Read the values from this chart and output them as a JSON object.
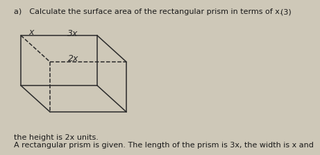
{
  "background_color": "#cec8b8",
  "text_color": "#1a1a1a",
  "box_color": "#2a2a2a",
  "title_line1": "A rectangular prism is given. The length of the prism is 3x, the width is x and",
  "title_line2": "the height is 2x units.",
  "question_line": "a) Calculate the surface area of the rectangular prism in terms of x.",
  "marks_text": "(3)",
  "label_2x": "2x",
  "label_3x": "3x",
  "label_x": "x",
  "font_size_title": 8.0,
  "font_size_label": 9.0,
  "font_size_question": 8.0,
  "font_size_marks": 8.0,
  "lw": 1.1
}
